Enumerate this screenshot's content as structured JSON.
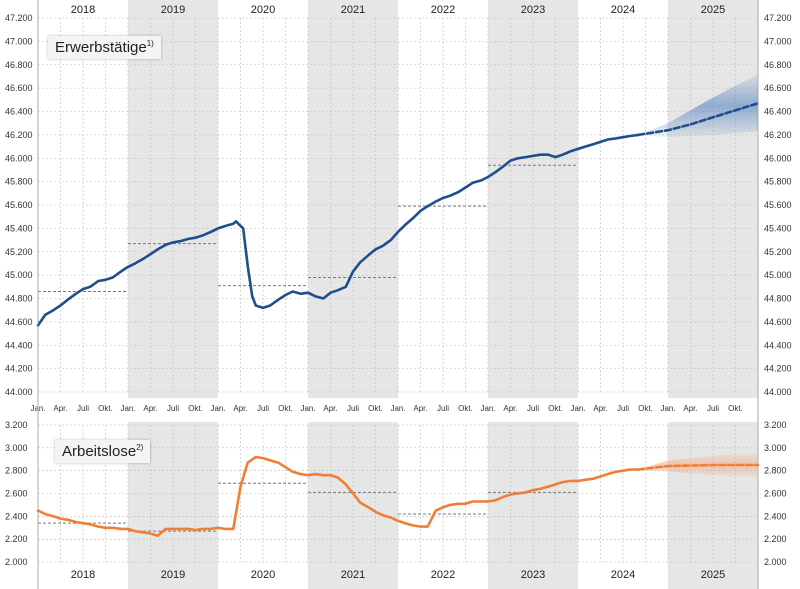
{
  "years": [
    "2018",
    "2019",
    "2020",
    "2021",
    "2022",
    "2023",
    "2024",
    "2025"
  ],
  "month_labels": [
    "Jan.",
    "Apr.",
    "Juli",
    "Okt."
  ],
  "colors": {
    "employed": "#1f4e8c",
    "employed_band": "#4a7bbf",
    "unemployed": "#f07f35",
    "unemployed_band": "#f5a57a",
    "shade": "#e6e6e6",
    "annual_avg": "#7a7a7a"
  },
  "chart_data": [
    {
      "type": "line",
      "title": "Erwerbstätige",
      "title_footnote": "1)",
      "ylim": [
        44000,
        47200
      ],
      "yticks": [
        "44.000",
        "44.200",
        "44.400",
        "44.600",
        "44.800",
        "45.000",
        "45.200",
        "45.400",
        "45.600",
        "45.800",
        "46.000",
        "46.200",
        "46.400",
        "46.600",
        "46.800",
        "47.000",
        "47.200"
      ],
      "xlim": [
        2018.0,
        2026.0
      ],
      "series": [
        {
          "style": "solid",
          "points": [
            [
              2018.0,
              44570
            ],
            [
              2018.08,
              44660
            ],
            [
              2018.17,
              44700
            ],
            [
              2018.25,
              44740
            ],
            [
              2018.33,
              44790
            ],
            [
              2018.42,
              44840
            ],
            [
              2018.5,
              44880
            ],
            [
              2018.58,
              44900
            ],
            [
              2018.67,
              44950
            ],
            [
              2018.75,
              44960
            ],
            [
              2018.83,
              44980
            ],
            [
              2018.92,
              45030
            ],
            [
              2019.0,
              45070
            ],
            [
              2019.08,
              45100
            ],
            [
              2019.17,
              45140
            ],
            [
              2019.25,
              45180
            ],
            [
              2019.33,
              45220
            ],
            [
              2019.42,
              45260
            ],
            [
              2019.5,
              45280
            ],
            [
              2019.58,
              45290
            ],
            [
              2019.67,
              45310
            ],
            [
              2019.75,
              45320
            ],
            [
              2019.83,
              45340
            ],
            [
              2019.92,
              45370
            ],
            [
              2020.0,
              45400
            ],
            [
              2020.08,
              45420
            ],
            [
              2020.17,
              45440
            ],
            [
              2020.2,
              45460
            ],
            [
              2020.28,
              45400
            ],
            [
              2020.33,
              45080
            ],
            [
              2020.38,
              44820
            ],
            [
              2020.42,
              44740
            ],
            [
              2020.5,
              44720
            ],
            [
              2020.58,
              44740
            ],
            [
              2020.67,
              44790
            ],
            [
              2020.75,
              44830
            ],
            [
              2020.83,
              44860
            ],
            [
              2020.92,
              44840
            ],
            [
              2021.0,
              44850
            ],
            [
              2021.08,
              44820
            ],
            [
              2021.17,
              44800
            ],
            [
              2021.25,
              44850
            ],
            [
              2021.33,
              44870
            ],
            [
              2021.42,
              44900
            ],
            [
              2021.5,
              45030
            ],
            [
              2021.58,
              45110
            ],
            [
              2021.67,
              45170
            ],
            [
              2021.75,
              45220
            ],
            [
              2021.83,
              45250
            ],
            [
              2021.92,
              45300
            ],
            [
              2022.0,
              45370
            ],
            [
              2022.08,
              45430
            ],
            [
              2022.17,
              45490
            ],
            [
              2022.25,
              45550
            ],
            [
              2022.33,
              45590
            ],
            [
              2022.42,
              45630
            ],
            [
              2022.5,
              45660
            ],
            [
              2022.58,
              45680
            ],
            [
              2022.67,
              45710
            ],
            [
              2022.75,
              45750
            ],
            [
              2022.83,
              45790
            ],
            [
              2022.92,
              45810
            ],
            [
              2023.0,
              45840
            ],
            [
              2023.08,
              45880
            ],
            [
              2023.17,
              45930
            ],
            [
              2023.25,
              45980
            ],
            [
              2023.33,
              46000
            ],
            [
              2023.42,
              46010
            ],
            [
              2023.5,
              46020
            ],
            [
              2023.58,
              46030
            ],
            [
              2023.67,
              46030
            ],
            [
              2023.75,
              46010
            ],
            [
              2023.83,
              46030
            ],
            [
              2023.92,
              46060
            ],
            [
              2024.0,
              46080
            ],
            [
              2024.08,
              46100
            ],
            [
              2024.17,
              46120
            ],
            [
              2024.25,
              46140
            ],
            [
              2024.33,
              46160
            ],
            [
              2024.42,
              46170
            ],
            [
              2024.5,
              46180
            ],
            [
              2024.58,
              46190
            ],
            [
              2024.67,
              46200
            ]
          ]
        },
        {
          "style": "dashed",
          "points": [
            [
              2024.67,
              46200
            ],
            [
              2025.0,
              46240
            ],
            [
              2025.25,
              46290
            ],
            [
              2025.5,
              46350
            ],
            [
              2025.75,
              46410
            ],
            [
              2026.0,
              46470
            ]
          ]
        }
      ],
      "band": {
        "lower": [
          [
            2024.67,
            46200
          ],
          [
            2025.0,
            46180
          ],
          [
            2025.5,
            46200
          ],
          [
            2026.0,
            46230
          ]
        ],
        "upper": [
          [
            2024.67,
            46200
          ],
          [
            2025.0,
            46300
          ],
          [
            2025.5,
            46520
          ],
          [
            2026.0,
            46720
          ]
        ]
      },
      "annual_average": [
        {
          "year": 2018,
          "value": 44860
        },
        {
          "year": 2019,
          "value": 45270
        },
        {
          "year": 2020,
          "value": 44910
        },
        {
          "year": 2021,
          "value": 44980
        },
        {
          "year": 2022,
          "value": 45590
        },
        {
          "year": 2023,
          "value": 45940
        }
      ]
    },
    {
      "type": "line",
      "title": "Arbeitslose",
      "title_footnote": "2)",
      "ylim": [
        2000,
        3200
      ],
      "yticks": [
        "2.000",
        "2.200",
        "2.400",
        "2.600",
        "2.800",
        "3.000",
        "3.200"
      ],
      "xlim": [
        2018.0,
        2026.0
      ],
      "series": [
        {
          "style": "solid",
          "points": [
            [
              2018.0,
              2450
            ],
            [
              2018.08,
              2420
            ],
            [
              2018.17,
              2400
            ],
            [
              2018.25,
              2380
            ],
            [
              2018.33,
              2370
            ],
            [
              2018.42,
              2350
            ],
            [
              2018.5,
              2340
            ],
            [
              2018.58,
              2330
            ],
            [
              2018.67,
              2310
            ],
            [
              2018.75,
              2300
            ],
            [
              2018.83,
              2300
            ],
            [
              2018.92,
              2290
            ],
            [
              2019.0,
              2290
            ],
            [
              2019.08,
              2270
            ],
            [
              2019.17,
              2260
            ],
            [
              2019.25,
              2250
            ],
            [
              2019.33,
              2230
            ],
            [
              2019.42,
              2290
            ],
            [
              2019.5,
              2290
            ],
            [
              2019.58,
              2290
            ],
            [
              2019.67,
              2290
            ],
            [
              2019.75,
              2280
            ],
            [
              2019.83,
              2290
            ],
            [
              2019.92,
              2290
            ],
            [
              2020.0,
              2300
            ],
            [
              2020.08,
              2290
            ],
            [
              2020.17,
              2290
            ],
            [
              2020.25,
              2660
            ],
            [
              2020.33,
              2870
            ],
            [
              2020.42,
              2920
            ],
            [
              2020.5,
              2910
            ],
            [
              2020.58,
              2890
            ],
            [
              2020.67,
              2870
            ],
            [
              2020.75,
              2830
            ],
            [
              2020.83,
              2790
            ],
            [
              2020.92,
              2770
            ],
            [
              2021.0,
              2760
            ],
            [
              2021.08,
              2770
            ],
            [
              2021.17,
              2760
            ],
            [
              2021.25,
              2760
            ],
            [
              2021.33,
              2740
            ],
            [
              2021.42,
              2680
            ],
            [
              2021.5,
              2600
            ],
            [
              2021.58,
              2520
            ],
            [
              2021.67,
              2480
            ],
            [
              2021.75,
              2440
            ],
            [
              2021.83,
              2410
            ],
            [
              2021.92,
              2390
            ],
            [
              2022.0,
              2360
            ],
            [
              2022.08,
              2340
            ],
            [
              2022.17,
              2320
            ],
            [
              2022.25,
              2310
            ],
            [
              2022.33,
              2310
            ],
            [
              2022.42,
              2450
            ],
            [
              2022.5,
              2480
            ],
            [
              2022.58,
              2500
            ],
            [
              2022.67,
              2510
            ],
            [
              2022.75,
              2510
            ],
            [
              2022.83,
              2530
            ],
            [
              2022.92,
              2530
            ],
            [
              2023.0,
              2530
            ],
            [
              2023.08,
              2540
            ],
            [
              2023.17,
              2570
            ],
            [
              2023.25,
              2590
            ],
            [
              2023.33,
              2600
            ],
            [
              2023.42,
              2610
            ],
            [
              2023.5,
              2630
            ],
            [
              2023.58,
              2640
            ],
            [
              2023.67,
              2660
            ],
            [
              2023.75,
              2680
            ],
            [
              2023.83,
              2700
            ],
            [
              2023.92,
              2710
            ],
            [
              2024.0,
              2710
            ],
            [
              2024.08,
              2720
            ],
            [
              2024.17,
              2730
            ],
            [
              2024.25,
              2750
            ],
            [
              2024.33,
              2770
            ],
            [
              2024.42,
              2790
            ],
            [
              2024.5,
              2800
            ],
            [
              2024.58,
              2810
            ],
            [
              2024.67,
              2810
            ]
          ]
        },
        {
          "style": "dashed",
          "points": [
            [
              2024.67,
              2810
            ],
            [
              2025.0,
              2840
            ],
            [
              2025.5,
              2850
            ],
            [
              2026.0,
              2850
            ]
          ]
        }
      ],
      "band": {
        "lower": [
          [
            2024.67,
            2810
          ],
          [
            2025.0,
            2790
          ],
          [
            2025.5,
            2760
          ],
          [
            2026.0,
            2740
          ]
        ],
        "upper": [
          [
            2024.67,
            2810
          ],
          [
            2025.0,
            2890
          ],
          [
            2025.5,
            2930
          ],
          [
            2026.0,
            2960
          ]
        ]
      },
      "annual_average": [
        {
          "year": 2018,
          "value": 2340
        },
        {
          "year": 2019,
          "value": 2270
        },
        {
          "year": 2020,
          "value": 2690
        },
        {
          "year": 2021,
          "value": 2610
        },
        {
          "year": 2022,
          "value": 2420
        },
        {
          "year": 2023,
          "value": 2610
        }
      ]
    }
  ]
}
